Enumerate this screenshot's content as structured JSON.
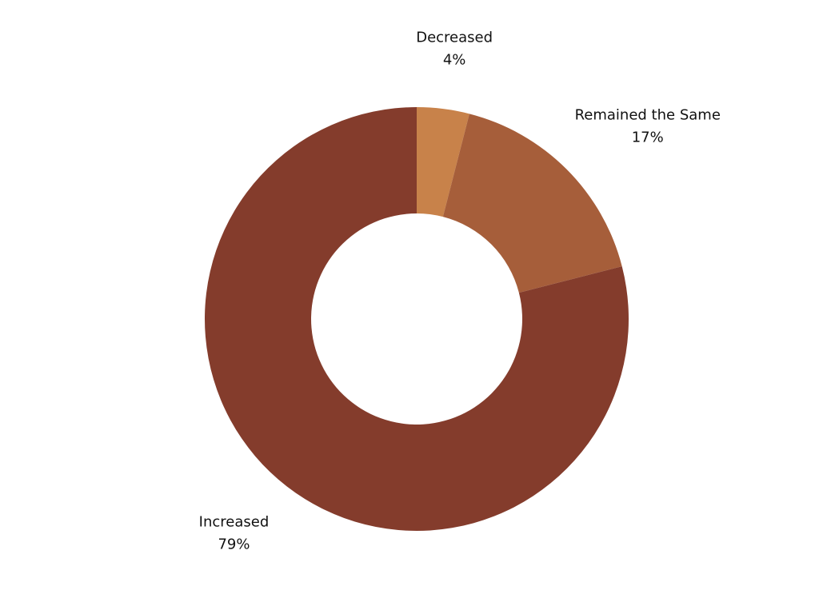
{
  "chart_data": {
    "type": "donut",
    "categories": [
      "Decreased",
      "Remained the Same",
      "Increased"
    ],
    "values": [
      4,
      17,
      79
    ],
    "value_labels": [
      "4%",
      "17%",
      "79%"
    ],
    "colors": [
      "#c8824a",
      "#a65e3a",
      "#843c2c"
    ]
  }
}
